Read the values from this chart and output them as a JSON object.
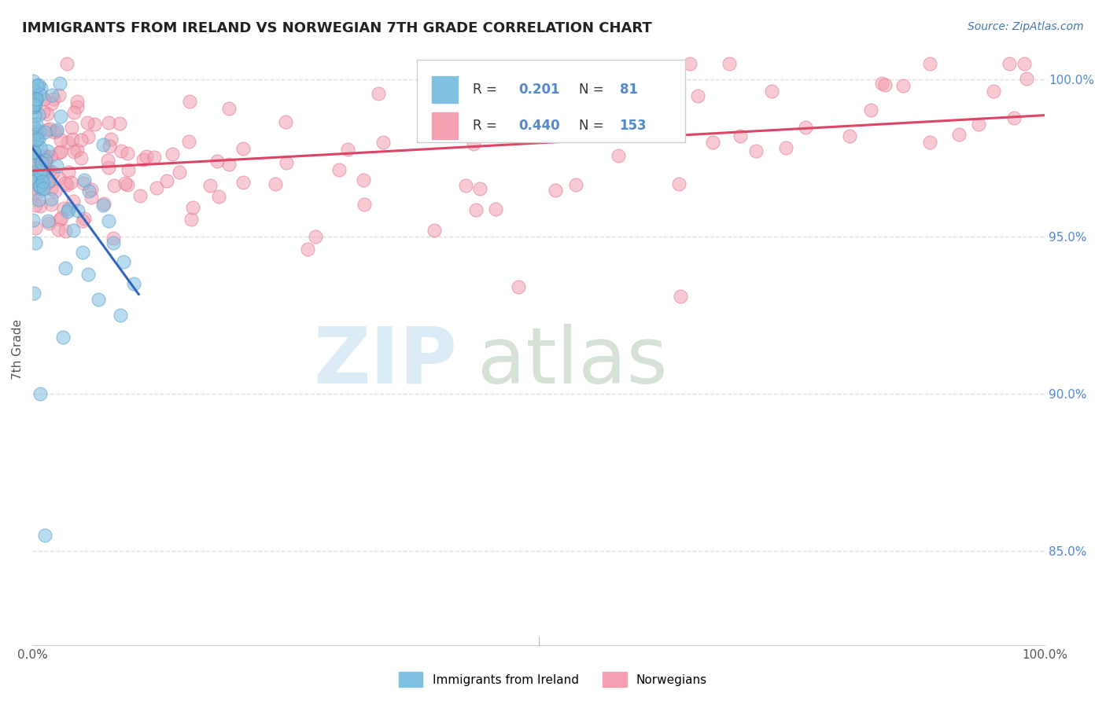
{
  "title": "IMMIGRANTS FROM IRELAND VS NORWEGIAN 7TH GRADE CORRELATION CHART",
  "source": "Source: ZipAtlas.com",
  "legend_blue_label": "Immigrants from Ireland",
  "legend_pink_label": "Norwegians",
  "legend_blue_R": "0.201",
  "legend_blue_N": "81",
  "legend_pink_R": "0.440",
  "legend_pink_N": "153",
  "blue_color": "#7fbfdf",
  "pink_color": "#f4a0b0",
  "blue_edge_color": "#5599cc",
  "pink_edge_color": "#e07090",
  "blue_line_color": "#3366bb",
  "pink_line_color": "#dd4466",
  "ylabel": "7th Grade",
  "right_tick_color": "#5588cc",
  "watermark_zip_color": "#cce5f5",
  "watermark_atlas_color": "#c5d5c5",
  "background_color": "#ffffff",
  "grid_color": "#e0e0e0",
  "title_color": "#222222",
  "source_color": "#4477aa",
  "ylim_low": 0.82,
  "ylim_high": 1.008,
  "grid_lines": [
    1.0,
    0.95,
    0.9,
    0.85
  ],
  "right_tick_labels": [
    "100.0%",
    "95.0%",
    "90.0%",
    "85.0%"
  ]
}
